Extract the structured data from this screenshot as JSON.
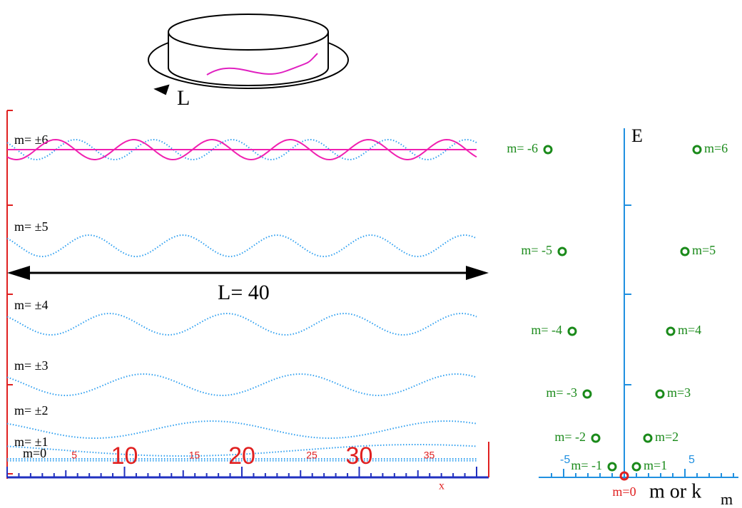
{
  "ring_label": "L",
  "waves": [
    {
      "label": "m= ±6"
    },
    {
      "label": "m= ±5"
    },
    {
      "label": "m= ±4"
    },
    {
      "label": "m= ±3"
    },
    {
      "label": "m= ±2"
    },
    {
      "label": "m= ±1"
    },
    {
      "label": "m=0"
    }
  ],
  "length_label": "L= 40",
  "x_axis": {
    "major": [
      "10",
      "20",
      "30"
    ],
    "minor": [
      "5",
      "15",
      "25",
      "35"
    ],
    "label": "x"
  },
  "energy_plot": {
    "y_label": "E",
    "x_label": "m or k",
    "x_label_sub": "m",
    "ticks": [
      "-5",
      "5"
    ],
    "points": [
      {
        "label": "m= -6"
      },
      {
        "label": "m=6"
      },
      {
        "label": "m= -5"
      },
      {
        "label": "m=5"
      },
      {
        "label": "m= -4"
      },
      {
        "label": "m=4"
      },
      {
        "label": "m= -3"
      },
      {
        "label": "m=3"
      },
      {
        "label": "m= -2"
      },
      {
        "label": "m=2"
      },
      {
        "label": "m= -1"
      },
      {
        "label": "m=1"
      },
      {
        "label": "m=0"
      }
    ]
  }
}
